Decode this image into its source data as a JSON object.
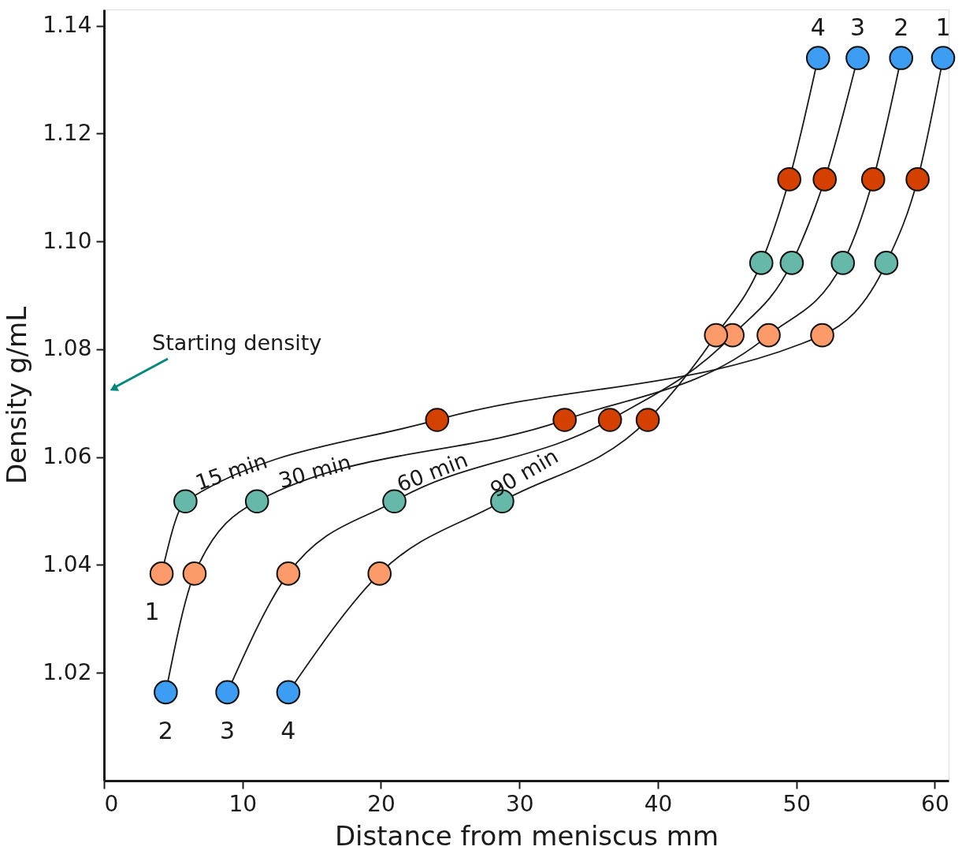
{
  "chart_data": {
    "type": "line",
    "xlabel": "Distance from meniscus mm",
    "ylabel": "Density g/mL",
    "xlim": [
      0,
      61
    ],
    "ylim": [
      1.0,
      1.143
    ],
    "xticks": [
      0,
      10,
      20,
      30,
      40,
      50,
      60
    ],
    "yticks": [
      1.02,
      1.04,
      1.06,
      1.08,
      {
        "value": 1.1,
        "label": "1.10"
      },
      1.12,
      1.14
    ],
    "grid": false,
    "marker": "circle",
    "series": [
      {
        "name": "15 min",
        "color": "#1a1a1a",
        "x": [
          4.16,
          5.88,
          24.06,
          51.87,
          56.5,
          58.76,
          60.6
        ],
        "values": [
          1.0384,
          1.0518,
          1.0669,
          1.0826,
          1.096,
          1.1115,
          1.134
        ],
        "colors": [
          "#fd9a6a",
          "#66b8a8",
          "#d44000",
          "#fd9a6a",
          "#66b8a8",
          "#d44000",
          "#3d9df3"
        ]
      },
      {
        "name": "30 min",
        "color": "#1a1a1a",
        "x": [
          4.46,
          6.54,
          11.05,
          33.27,
          48.0,
          53.36,
          55.55,
          57.57
        ],
        "values": [
          1.0164,
          1.0384,
          1.0518,
          1.0669,
          1.0826,
          1.096,
          1.1115,
          1.134
        ],
        "colors": [
          "#3d9df3",
          "#fd9a6a",
          "#66b8a8",
          "#d44000",
          "#fd9a6a",
          "#66b8a8",
          "#d44000",
          "#3d9df3"
        ]
      },
      {
        "name": "60 min",
        "color": "#1a1a1a",
        "x": [
          8.91,
          13.31,
          20.97,
          36.54,
          45.39,
          49.67,
          52.05,
          54.43
        ],
        "values": [
          1.0164,
          1.0384,
          1.0518,
          1.0669,
          1.0826,
          1.096,
          1.1115,
          1.134
        ],
        "colors": [
          "#3d9df3",
          "#fd9a6a",
          "#66b8a8",
          "#d44000",
          "#fd9a6a",
          "#66b8a8",
          "#d44000",
          "#3d9df3"
        ]
      },
      {
        "name": "90 min",
        "color": "#1a1a1a",
        "x": [
          13.31,
          19.9,
          28.76,
          39.27,
          44.2,
          47.47,
          49.49,
          51.57
        ],
        "values": [
          1.0164,
          1.0384,
          1.0518,
          1.0669,
          1.0826,
          1.096,
          1.1115,
          1.134
        ],
        "colors": [
          "#3d9df3",
          "#fd9a6a",
          "#66b8a8",
          "#d44000",
          "#fd9a6a",
          "#66b8a8",
          "#d44000",
          "#3d9df3"
        ]
      }
    ],
    "annotations": [
      "Starting density",
      "1",
      "2",
      "3",
      "4",
      "1",
      "2",
      "3",
      "4"
    ]
  }
}
